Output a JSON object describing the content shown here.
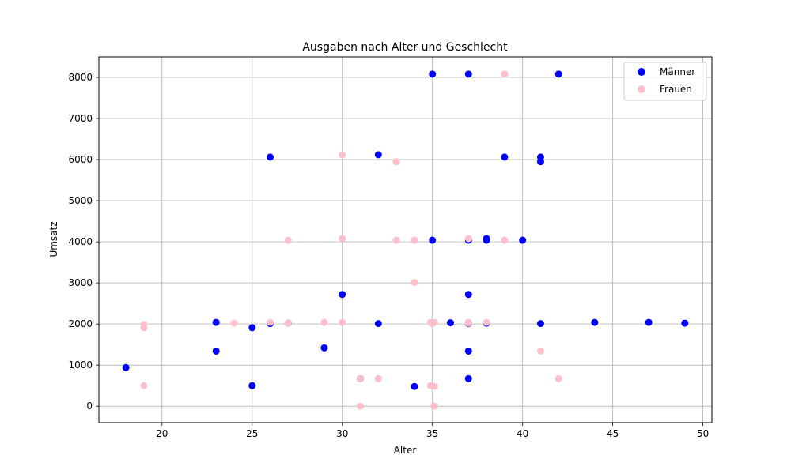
{
  "chart_data": {
    "type": "scatter",
    "title": "Ausgaben nach Alter und Geschlecht",
    "xlabel": "Alter",
    "ylabel": "Umsatz",
    "xlim": [
      16.5,
      50.5
    ],
    "ylim": [
      -400,
      8500
    ],
    "xticks": [
      20,
      25,
      30,
      35,
      40,
      45,
      50
    ],
    "yticks": [
      0,
      1000,
      2000,
      3000,
      4000,
      5000,
      6000,
      7000,
      8000
    ],
    "grid": true,
    "legend_position": "top-right",
    "series": [
      {
        "name": "Männer",
        "color": "#0000ff",
        "points": [
          [
            18,
            940
          ],
          [
            23,
            2040
          ],
          [
            23,
            1340
          ],
          [
            25,
            1910
          ],
          [
            25,
            500
          ],
          [
            26,
            6060
          ],
          [
            26,
            2030
          ],
          [
            26,
            2010
          ],
          [
            27,
            2020
          ],
          [
            29,
            1420
          ],
          [
            30,
            2720
          ],
          [
            31,
            670
          ],
          [
            32,
            6120
          ],
          [
            32,
            2010
          ],
          [
            34,
            480
          ],
          [
            35,
            8080
          ],
          [
            35,
            4040
          ],
          [
            36,
            2030
          ],
          [
            37,
            8080
          ],
          [
            37,
            4040
          ],
          [
            37,
            2720
          ],
          [
            37,
            2010
          ],
          [
            37,
            1340
          ],
          [
            37,
            670
          ],
          [
            38,
            4080
          ],
          [
            38,
            4040
          ],
          [
            38,
            2020
          ],
          [
            39,
            6060
          ],
          [
            40,
            4040
          ],
          [
            41,
            6060
          ],
          [
            41,
            5950
          ],
          [
            41,
            2010
          ],
          [
            42,
            8080
          ],
          [
            44,
            2040
          ],
          [
            47,
            2040
          ],
          [
            49,
            2020
          ]
        ]
      },
      {
        "name": "Frauen",
        "color": "#ffc0cb",
        "points": [
          [
            19,
            1990
          ],
          [
            19,
            1910
          ],
          [
            19,
            500
          ],
          [
            24,
            2020
          ],
          [
            26,
            2040
          ],
          [
            27,
            4040
          ],
          [
            27,
            2020
          ],
          [
            29,
            2040
          ],
          [
            30,
            6120
          ],
          [
            30,
            4080
          ],
          [
            30,
            2040
          ],
          [
            31,
            670
          ],
          [
            31,
            0
          ],
          [
            32,
            670
          ],
          [
            33,
            5950
          ],
          [
            33,
            4040
          ],
          [
            34,
            4040
          ],
          [
            34,
            3010
          ],
          [
            34.9,
            2040
          ],
          [
            35,
            2010
          ],
          [
            34.9,
            500
          ],
          [
            35.1,
            480
          ],
          [
            35.1,
            0
          ],
          [
            35.1,
            2040
          ],
          [
            37,
            4080
          ],
          [
            37,
            2040
          ],
          [
            37,
            2020
          ],
          [
            38,
            2040
          ],
          [
            39,
            8080
          ],
          [
            39,
            4040
          ],
          [
            41,
            1340
          ],
          [
            42,
            670
          ]
        ]
      }
    ]
  }
}
